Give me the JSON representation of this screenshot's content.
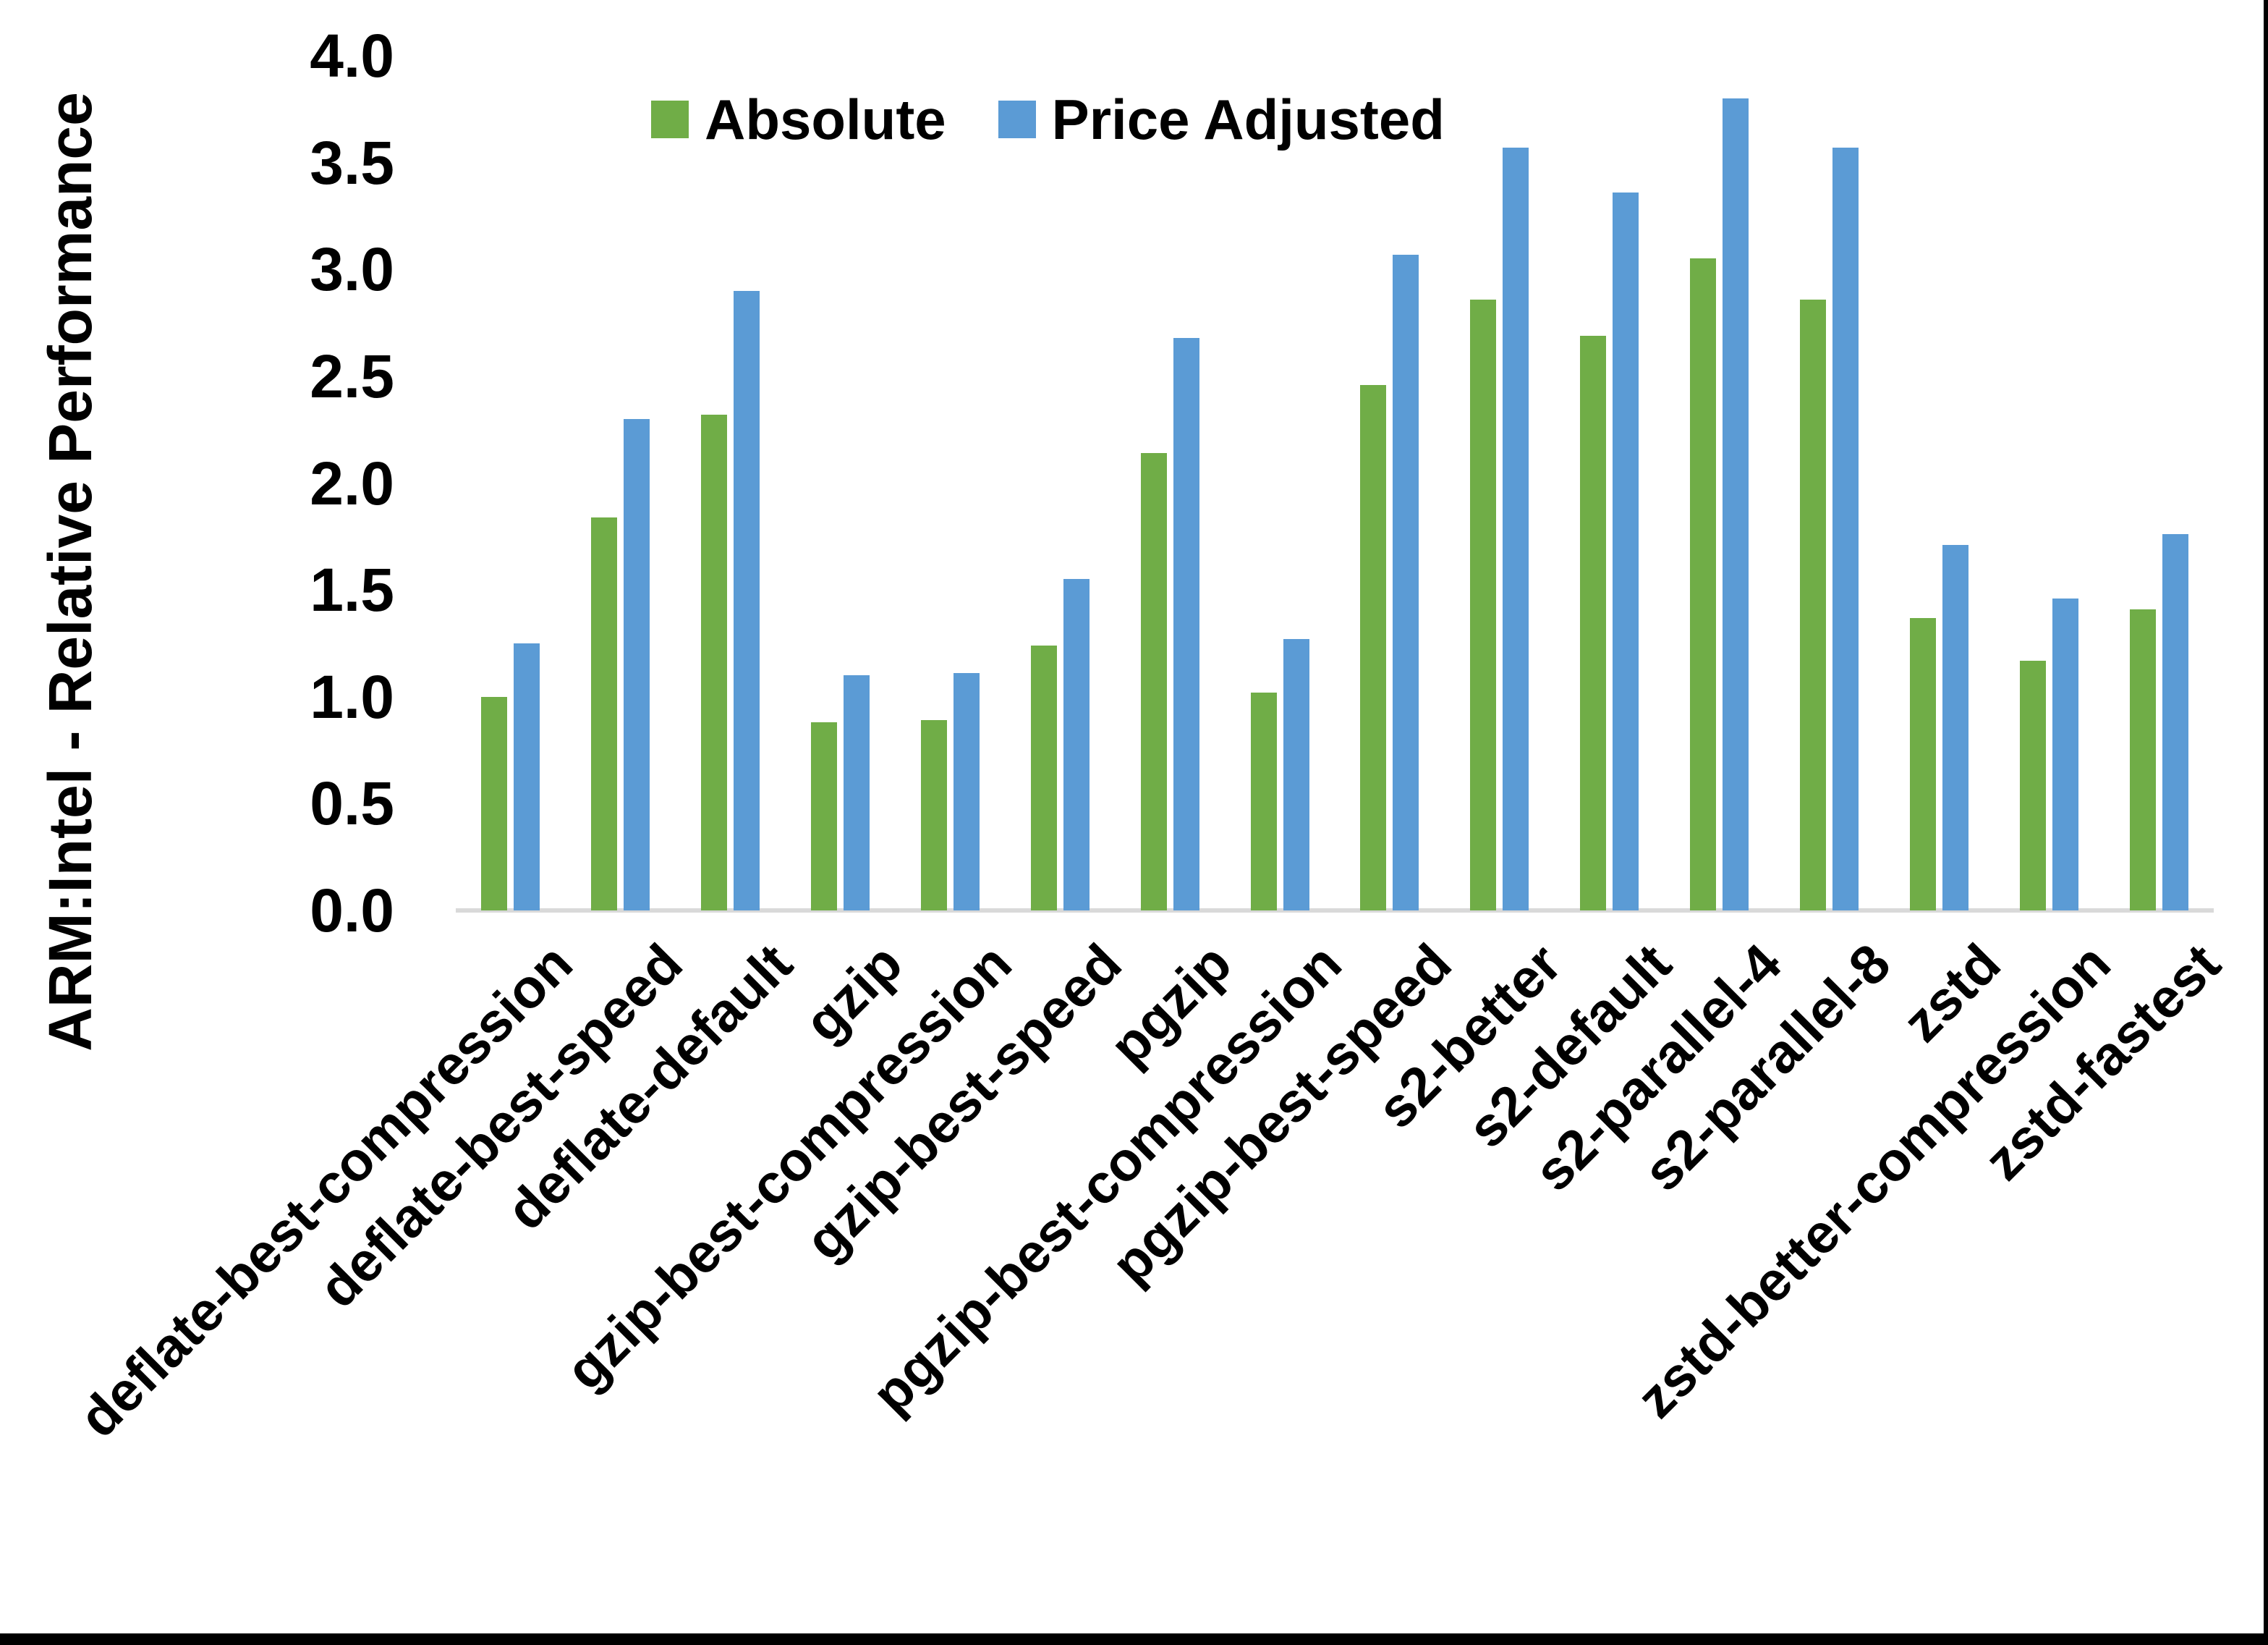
{
  "chart_data": {
    "type": "bar",
    "title": "",
    "xlabel": "",
    "ylabel": "ARM:Intel - Relative Performance",
    "ylim": [
      0.0,
      4.0
    ],
    "ytick_step": 0.5,
    "ytick_labels": [
      "0.0",
      "0.5",
      "1.0",
      "1.5",
      "2.0",
      "2.5",
      "3.0",
      "3.5",
      "4.0"
    ],
    "grid": false,
    "legend_position": "top-inside",
    "categories": [
      "deflate-best-compression",
      "deflate-best-speed",
      "deflate-default",
      "gzip",
      "gzip-best-compression",
      "gzip-best-speed",
      "pgzip",
      "pgzip-best-compression",
      "pgzip-best-speed",
      "s2-better",
      "s2-default",
      "s2-parallel-4",
      "s2-parallel-8",
      "zstd",
      "zstd-better-compression",
      "zstd-fastest"
    ],
    "series": [
      {
        "name": "Absolute",
        "color": "#70AD47",
        "values": [
          1.0,
          1.84,
          2.32,
          0.88,
          0.89,
          1.24,
          2.14,
          1.02,
          2.46,
          2.86,
          2.69,
          3.05,
          2.86,
          1.37,
          1.17,
          1.41
        ]
      },
      {
        "name": "Price Adjusted",
        "color": "#5B9BD5",
        "values": [
          1.25,
          2.3,
          2.9,
          1.1,
          1.11,
          1.55,
          2.68,
          1.27,
          3.07,
          3.57,
          3.36,
          3.8,
          3.57,
          1.71,
          1.46,
          1.76
        ]
      }
    ],
    "colors": {
      "axis_line": "#D9D9D9",
      "text": "#000000",
      "background": "#FFFFFF",
      "frame": "#000000"
    }
  }
}
